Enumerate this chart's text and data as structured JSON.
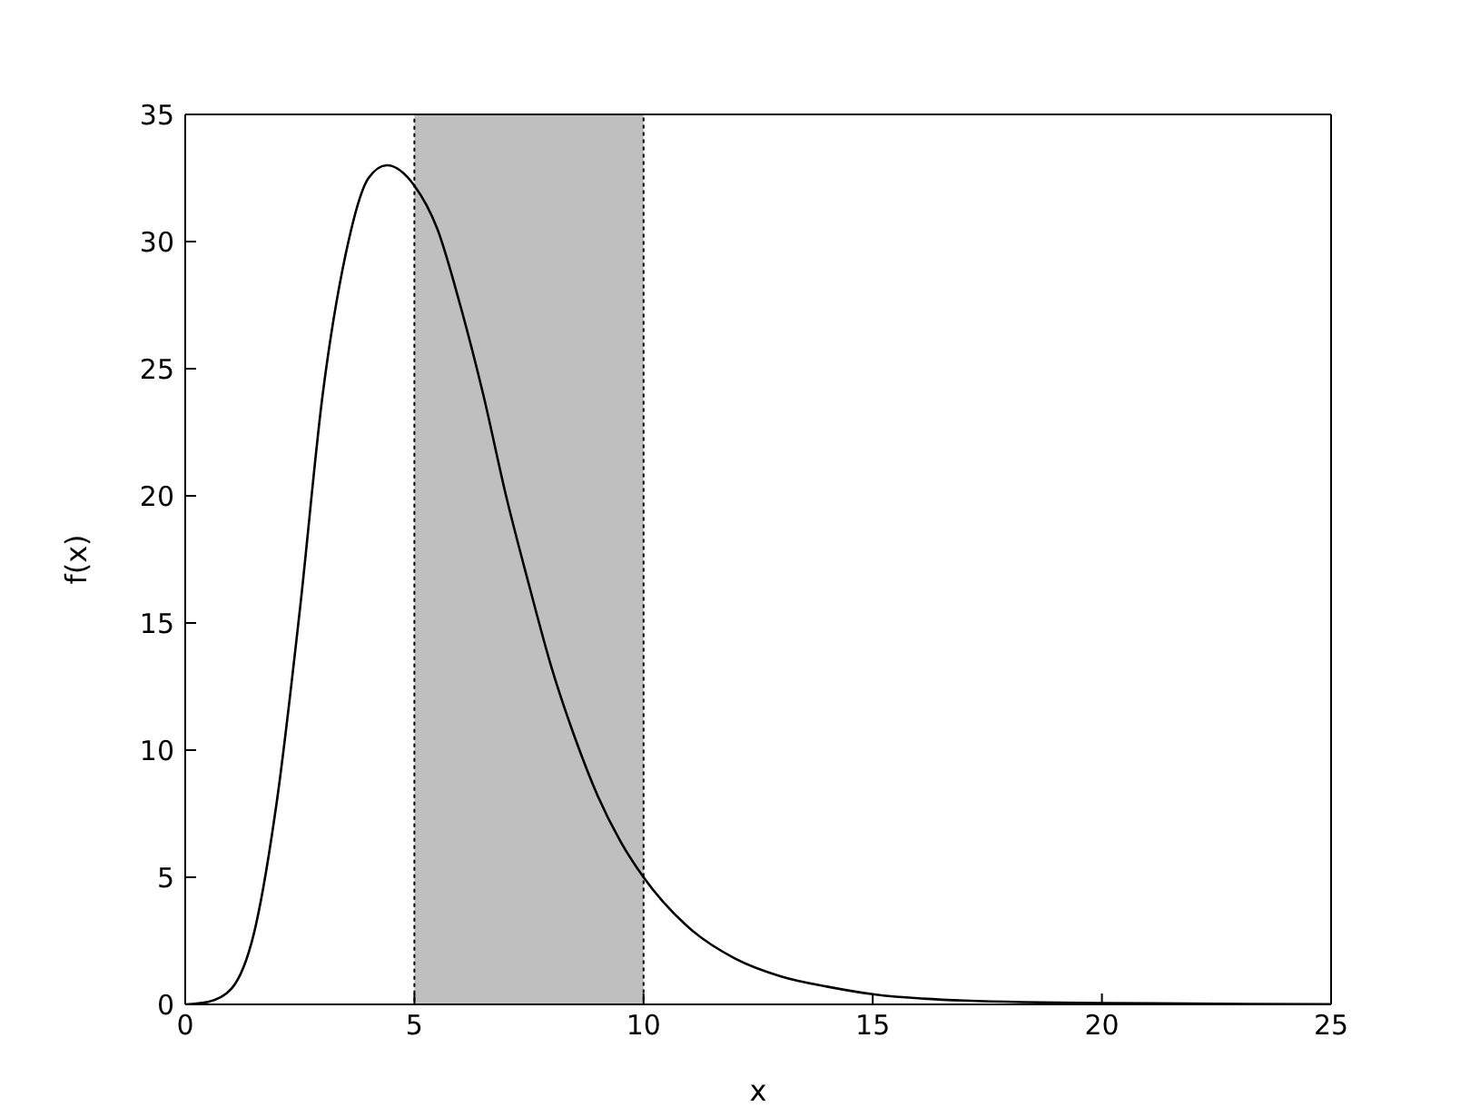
{
  "chart_data": {
    "type": "line",
    "xlabel": "x",
    "ylabel": "f(x)",
    "x": [
      0,
      0.5,
      1,
      1.5,
      2,
      2.5,
      3,
      3.5,
      4,
      4.4,
      5,
      5.5,
      6,
      6.5,
      7,
      7.5,
      8,
      8.5,
      9,
      9.5,
      10,
      11,
      12,
      13,
      14,
      15,
      17,
      20,
      25
    ],
    "series": [
      {
        "color": "#000000",
        "values": [
          0,
          0.1,
          0.6,
          2.8,
          8,
          15.5,
          24,
          29.5,
          32.5,
          33,
          32.2,
          30.5,
          27.5,
          24,
          20,
          16.5,
          13.2,
          10.5,
          8.2,
          6.4,
          5,
          3,
          1.8,
          1.1,
          0.7,
          0.4,
          0.15,
          0.05,
          0.01
        ]
      }
    ],
    "xlim": [
      0,
      25
    ],
    "xticks": [
      0,
      5,
      10,
      15,
      20,
      25
    ],
    "ylim": [
      0,
      35
    ],
    "yticks": [
      0,
      5,
      10,
      15,
      20,
      25,
      30,
      35
    ],
    "bands": [
      {
        "axis": "x",
        "from": 5,
        "to": 10,
        "color": "#bfbfbf"
      }
    ],
    "grid": false,
    "legend": false,
    "marker": "none",
    "line_style": "solid"
  }
}
